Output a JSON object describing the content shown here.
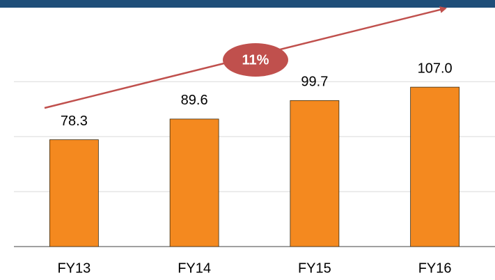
{
  "chart_data": {
    "type": "bar",
    "categories": [
      "FY13",
      "FY14",
      "FY15",
      "FY16"
    ],
    "values": [
      78.3,
      89.6,
      99.7,
      107.0
    ],
    "value_labels": [
      "78.3",
      "89.6",
      "99.7",
      "107.0"
    ],
    "color": "#f4891f",
    "ylim": [
      20,
      150
    ],
    "yticks": [
      20,
      50,
      80,
      110
    ],
    "grid": true,
    "annotation": "11%",
    "annotation_color": "#c0504d"
  }
}
